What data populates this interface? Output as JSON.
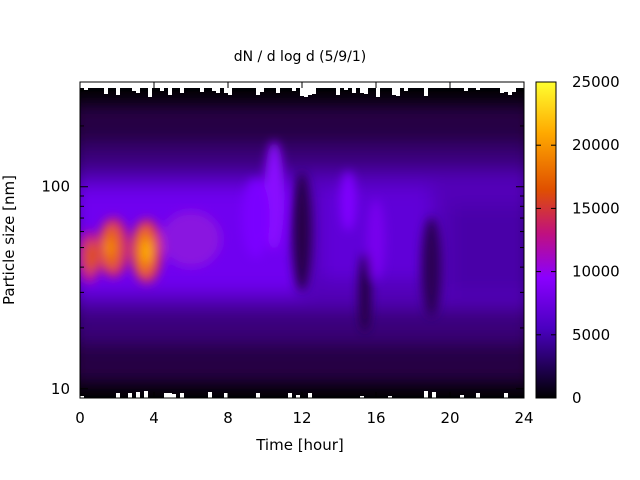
{
  "chart_data": {
    "type": "heatmap",
    "title": "dN / d log d (5/9/1)",
    "xlabel": "Time [hour]",
    "ylabel": "Particle size [nm]",
    "xlim": [
      0,
      24
    ],
    "x_ticks": [
      "0",
      "4",
      "8",
      "12",
      "16",
      "20",
      "24"
    ],
    "ylim": [
      9,
      330
    ],
    "y_scale": "log",
    "y_ticks": [
      "10",
      "100"
    ],
    "colorbar": {
      "range": [
        0,
        25000
      ],
      "ticks": [
        "0",
        "5000",
        "10000",
        "15000",
        "20000",
        "25000"
      ],
      "palette": [
        "#000000",
        "#6a00ff",
        "#c8109a",
        "#e85000",
        "#ffdd00",
        "#ffff40"
      ]
    },
    "features": [
      {
        "time": 0.5,
        "size_nm": 45,
        "value": 16000
      },
      {
        "time": 1.5,
        "size_nm": 50,
        "value": 19000
      },
      {
        "time": 3.5,
        "size_nm": 48,
        "value": 22000
      },
      {
        "time": 10.5,
        "size_nm": 90,
        "value": 8000
      },
      {
        "time": 14.5,
        "size_nm": 80,
        "value": 7500
      },
      {
        "time": 16.0,
        "size_nm": 60,
        "value": 7000
      }
    ]
  }
}
